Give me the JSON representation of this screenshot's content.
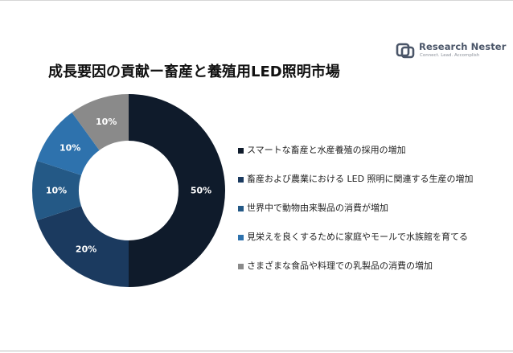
{
  "logo": {
    "name": "Research Nester",
    "tagline": "Connect. Lead. Accomplish"
  },
  "title": "成長要因の貢献ー畜産と養殖用LED照明市場",
  "chart_data": {
    "type": "pie",
    "donut": true,
    "title": "成長要因の貢献ー畜産と養殖用LED照明市場",
    "legend_position": "right",
    "slices": [
      {
        "label": "スマートな畜産と水産養殖の採用の増加",
        "value": 50,
        "display": "50%",
        "color": "#0f1b2b"
      },
      {
        "label": "畜産および農業における LED 照明に関連する生産の増加",
        "value": 20,
        "display": "20%",
        "color": "#1b3a5f"
      },
      {
        "label": "世界中で動物由来製品の消費が増加",
        "value": 10,
        "display": "10%",
        "color": "#245986"
      },
      {
        "label": "見栄えを良くするために家庭やモールで水族館を育てる",
        "value": 10,
        "display": "10%",
        "color": "#2e72ad"
      },
      {
        "label": "さまざまな食品や料理での乳製品の消費の増加",
        "value": 10,
        "display": "10%",
        "color": "#8a8a8a"
      }
    ]
  }
}
